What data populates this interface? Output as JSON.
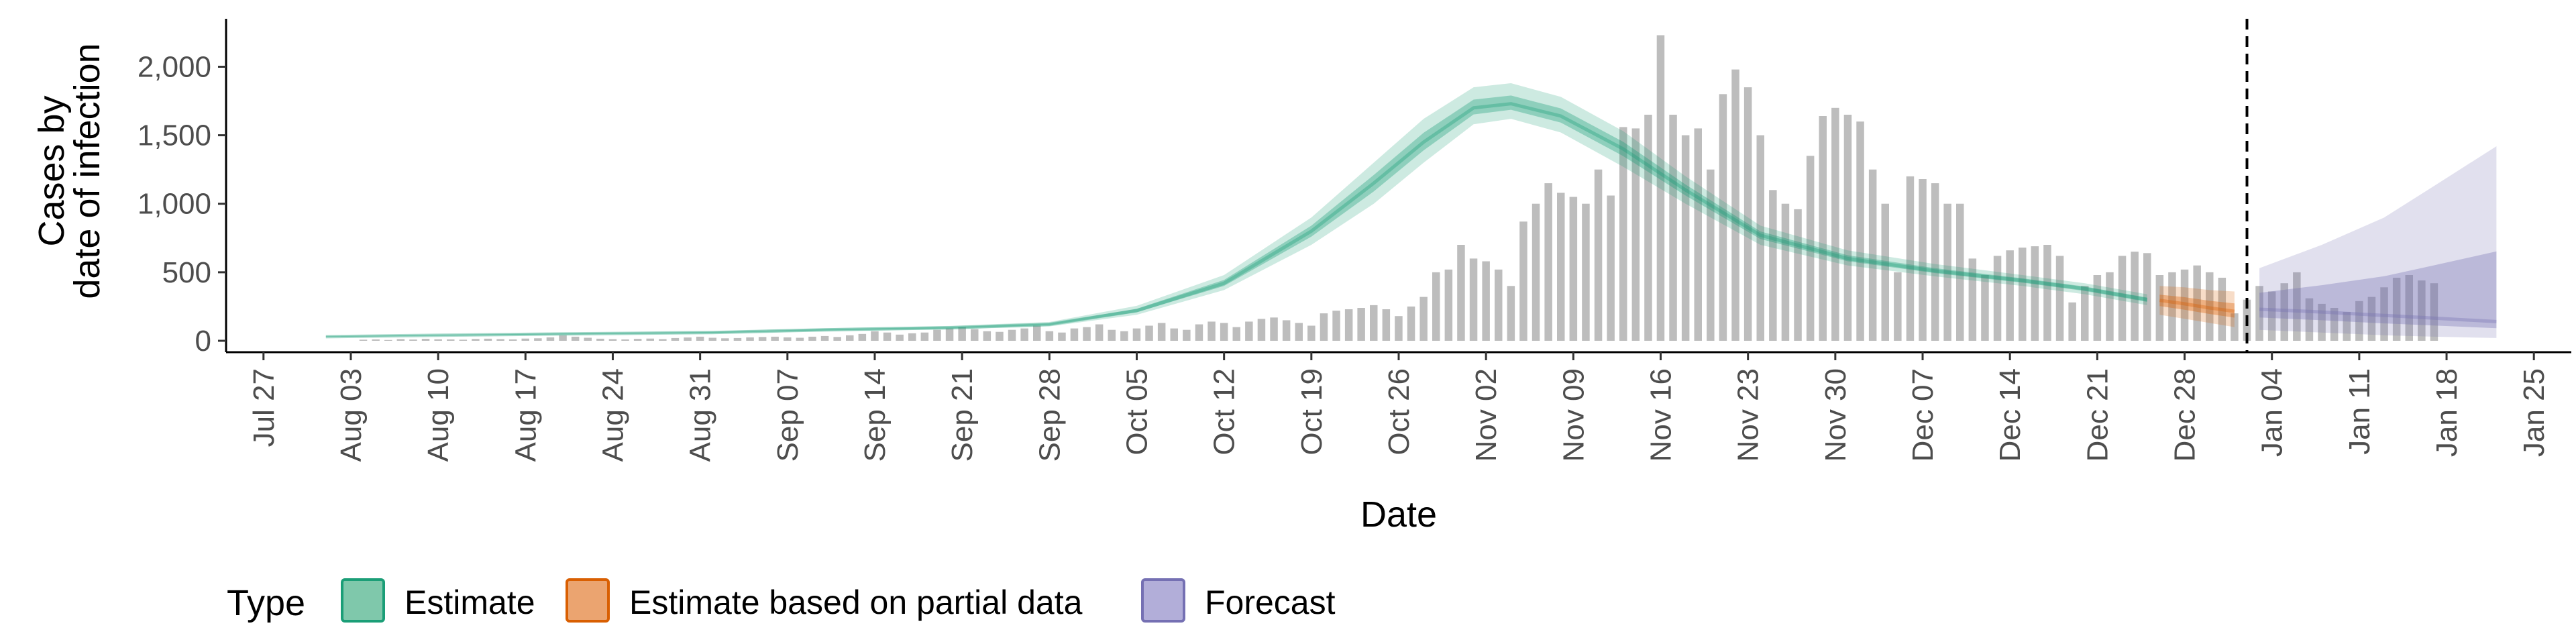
{
  "chart_data": {
    "type": "bar",
    "xlabel": "Date",
    "ylabel_line1": "Cases by",
    "ylabel_line2": "date of infection",
    "ylim": [
      0,
      2350
    ],
    "yticks": [
      0,
      500,
      1000,
      1500,
      2000
    ],
    "ytick_labels": [
      "0",
      "500",
      "1,000",
      "1,500",
      "2,000"
    ],
    "x_range": [
      "2020-07-24",
      "2021-01-28"
    ],
    "x_ticks": [
      {
        "date": "2020-07-27",
        "label": "Jul 27"
      },
      {
        "date": "2020-08-03",
        "label": "Aug 03"
      },
      {
        "date": "2020-08-10",
        "label": "Aug 10"
      },
      {
        "date": "2020-08-17",
        "label": "Aug 17"
      },
      {
        "date": "2020-08-24",
        "label": "Aug 24"
      },
      {
        "date": "2020-08-31",
        "label": "Aug 31"
      },
      {
        "date": "2020-09-07",
        "label": "Sep 07"
      },
      {
        "date": "2020-09-14",
        "label": "Sep 14"
      },
      {
        "date": "2020-09-21",
        "label": "Sep 21"
      },
      {
        "date": "2020-09-28",
        "label": "Sep 28"
      },
      {
        "date": "2020-10-05",
        "label": "Oct 05"
      },
      {
        "date": "2020-10-12",
        "label": "Oct 12"
      },
      {
        "date": "2020-10-19",
        "label": "Oct 19"
      },
      {
        "date": "2020-10-26",
        "label": "Oct 26"
      },
      {
        "date": "2020-11-02",
        "label": "Nov 02"
      },
      {
        "date": "2020-11-09",
        "label": "Nov 09"
      },
      {
        "date": "2020-11-16",
        "label": "Nov 16"
      },
      {
        "date": "2020-11-23",
        "label": "Nov 23"
      },
      {
        "date": "2020-11-30",
        "label": "Nov 30"
      },
      {
        "date": "2020-12-07",
        "label": "Dec 07"
      },
      {
        "date": "2020-12-14",
        "label": "Dec 14"
      },
      {
        "date": "2020-12-21",
        "label": "Dec 21"
      },
      {
        "date": "2020-12-28",
        "label": "Dec 28"
      },
      {
        "date": "2021-01-04",
        "label": "Jan 04"
      },
      {
        "date": "2021-01-11",
        "label": "Jan 11"
      },
      {
        "date": "2021-01-18",
        "label": "Jan 18"
      },
      {
        "date": "2021-01-25",
        "label": "Jan 25"
      }
    ],
    "forecast_start": "2021-01-02",
    "bars": {
      "start_date": "2020-08-04",
      "color": "#bdbdbd",
      "values": [
        8,
        10,
        6,
        12,
        9,
        14,
        11,
        10,
        8,
        13,
        15,
        12,
        10,
        16,
        18,
        25,
        40,
        30,
        22,
        15,
        12,
        10,
        14,
        16,
        12,
        20,
        24,
        30,
        22,
        18,
        20,
        25,
        28,
        30,
        25,
        22,
        30,
        35,
        28,
        40,
        50,
        70,
        60,
        45,
        55,
        60,
        80,
        90,
        100,
        85,
        70,
        65,
        80,
        90,
        110,
        70,
        60,
        90,
        100,
        120,
        80,
        70,
        90,
        110,
        130,
        90,
        80,
        120,
        140,
        130,
        100,
        140,
        160,
        170,
        150,
        130,
        110,
        200,
        220,
        230,
        240,
        260,
        230,
        180,
        250,
        320,
        500,
        520,
        700,
        600,
        580,
        520,
        400,
        870,
        1000,
        1150,
        1080,
        1050,
        1000,
        1250,
        1060,
        1560,
        1550,
        1650,
        2230,
        1650,
        1500,
        1550,
        1250,
        1800,
        1980,
        1850,
        1500,
        1100,
        1000,
        960,
        1350,
        1640,
        1700,
        1650,
        1600,
        1250,
        1000,
        500,
        1200,
        1180,
        1150,
        1000,
        1000,
        600,
        480,
        620,
        660,
        680,
        690,
        700,
        620,
        280,
        400,
        480,
        500,
        620,
        650,
        640,
        480,
        500,
        520,
        550,
        500,
        460,
        200,
        300,
        400,
        360,
        420,
        500,
        310,
        270,
        240,
        210,
        290,
        320,
        390,
        460,
        480,
        440,
        420
      ]
    },
    "series": [
      {
        "name": "Estimate",
        "color": "#1b9e77",
        "dates": [
          "2020-08-01",
          "2020-08-10",
          "2020-08-20",
          "2020-09-01",
          "2020-09-10",
          "2020-09-20",
          "2020-09-28",
          "2020-10-05",
          "2020-10-12",
          "2020-10-19",
          "2020-10-24",
          "2020-10-28",
          "2020-11-01",
          "2020-11-04",
          "2020-11-08",
          "2020-11-13",
          "2020-11-18",
          "2020-11-24",
          "2020-12-01",
          "2020-12-08",
          "2020-12-15",
          "2020-12-20",
          "2020-12-25"
        ],
        "median": [
          30,
          40,
          50,
          60,
          80,
          95,
          120,
          220,
          420,
          800,
          1150,
          1450,
          1700,
          1730,
          1640,
          1400,
          1100,
          770,
          600,
          510,
          440,
          380,
          300
        ],
        "lower_90": [
          25,
          34,
          43,
          52,
          70,
          83,
          105,
          190,
          370,
          700,
          1000,
          1300,
          1580,
          1620,
          1520,
          1270,
          1000,
          700,
          550,
          470,
          400,
          340,
          260
        ],
        "upper_90": [
          36,
          47,
          58,
          70,
          92,
          108,
          137,
          255,
          480,
          900,
          1300,
          1620,
          1850,
          1880,
          1780,
          1530,
          1200,
          840,
          660,
          560,
          480,
          420,
          340
        ]
      },
      {
        "name": "Estimate based on partial data",
        "color": "#d95f02",
        "dates": [
          "2020-12-26",
          "2020-12-28",
          "2020-12-30",
          "2021-01-01"
        ],
        "median": [
          295,
          270,
          240,
          215
        ],
        "lower_90": [
          190,
          160,
          130,
          100
        ],
        "upper_90": [
          400,
          390,
          370,
          360
        ]
      },
      {
        "name": "Forecast",
        "color": "#7570b3",
        "dates": [
          "2021-01-03",
          "2021-01-08",
          "2021-01-13",
          "2021-01-17",
          "2021-01-22"
        ],
        "median": [
          230,
          210,
          185,
          165,
          140
        ],
        "lower_90": [
          80,
          60,
          40,
          30,
          20
        ],
        "upper_90": [
          530,
          700,
          900,
          1130,
          1420
        ]
      }
    ],
    "legend": {
      "title": "Type",
      "placement": "bottom",
      "entries": [
        {
          "label": "Estimate",
          "fill": "#7fc8ab",
          "stroke": "#1b9e77"
        },
        {
          "label": "Estimate based on partial data",
          "fill": "#eba470",
          "stroke": "#d95f02"
        },
        {
          "label": "Forecast",
          "fill": "#b2aed9",
          "stroke": "#7570b3"
        }
      ]
    },
    "grid": false
  }
}
